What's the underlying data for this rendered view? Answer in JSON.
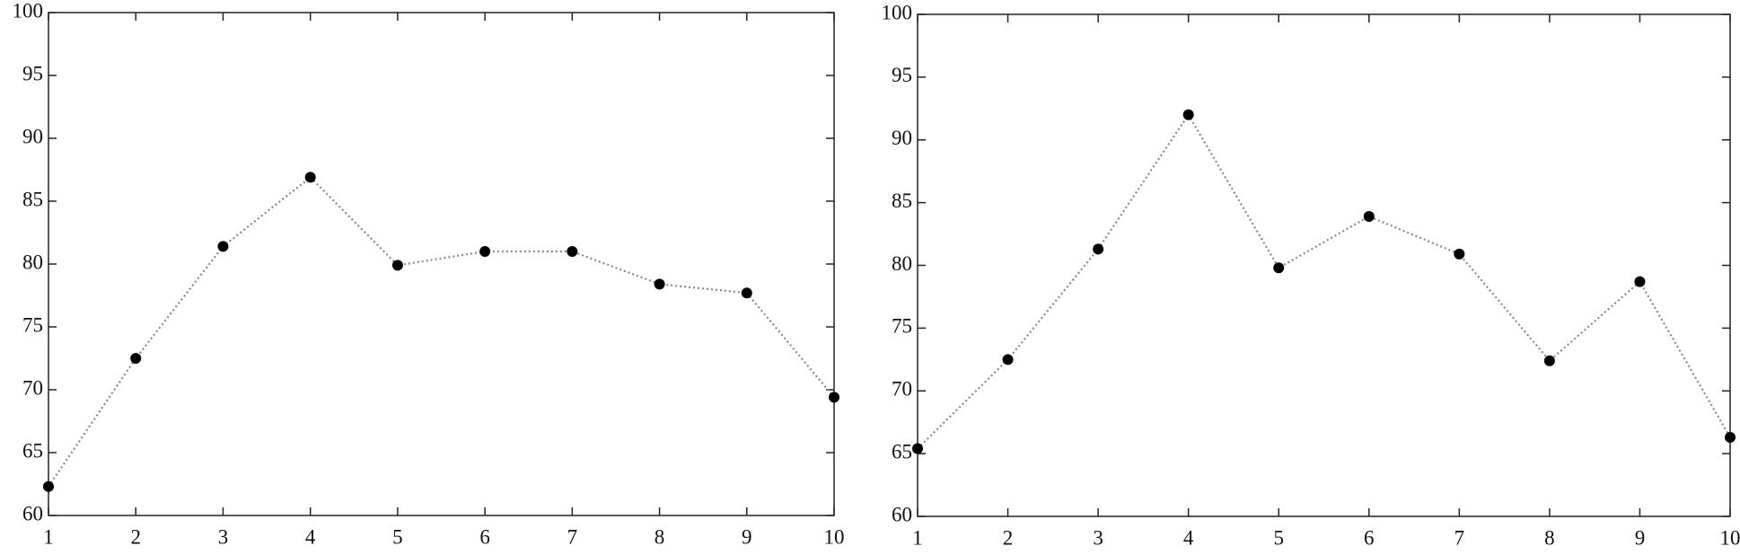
{
  "chart_data": [
    {
      "type": "line",
      "x": [
        1,
        2,
        3,
        4,
        5,
        6,
        7,
        8,
        9,
        10
      ],
      "values": [
        62.3,
        72.5,
        81.4,
        86.9,
        79.9,
        81.0,
        81.0,
        78.4,
        77.7,
        69.4
      ],
      "color": "#888888",
      "marker_color": "#000000",
      "xlim": [
        1,
        10
      ],
      "xticks": [
        1,
        2,
        3,
        4,
        5,
        6,
        7,
        8,
        9,
        10
      ],
      "ylim": [
        60,
        100
      ],
      "yticks": [
        60,
        65,
        70,
        75,
        80,
        85,
        90,
        95,
        100
      ]
    },
    {
      "type": "line",
      "x": [
        1,
        2,
        3,
        4,
        5,
        6,
        7,
        8,
        9,
        10
      ],
      "values": [
        65.4,
        72.5,
        81.3,
        92.0,
        79.8,
        83.9,
        80.9,
        72.4,
        78.7,
        66.3
      ],
      "color": "#888888",
      "marker_color": "#000000",
      "xlim": [
        1,
        10
      ],
      "xticks": [
        1,
        2,
        3,
        4,
        5,
        6,
        7,
        8,
        9,
        10
      ],
      "ylim": [
        60,
        100
      ],
      "yticks": [
        60,
        65,
        70,
        75,
        80,
        85,
        90,
        95,
        100
      ]
    }
  ]
}
